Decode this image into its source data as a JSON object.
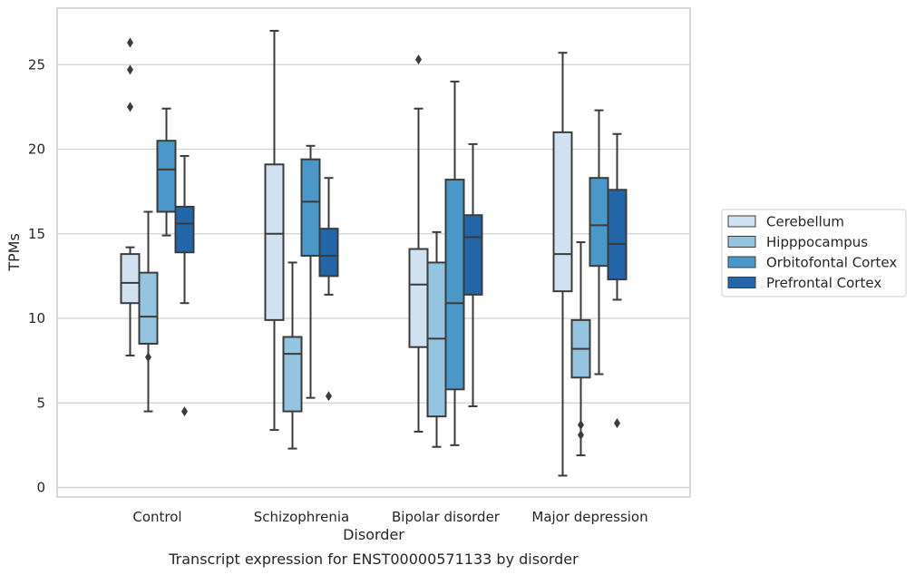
{
  "chart_data": {
    "type": "box",
    "title": "",
    "caption": "Transcript expression for ENST00000571133 by disorder",
    "xlabel": "Disorder",
    "ylabel": "TPMs",
    "ylim": [
      -0.5,
      28
    ],
    "yticks": [
      0,
      5,
      10,
      15,
      20,
      25
    ],
    "grid": "horizontal",
    "legend_position": "right",
    "categories": [
      "Control",
      "Schizophrenia",
      "Bipolar disorder",
      "Major depression"
    ],
    "series": [
      {
        "name": "Cerebellum",
        "color": "#d0e1f2",
        "boxes": [
          {
            "whislo": 7.8,
            "q1": 10.9,
            "med": 12.1,
            "q3": 13.8,
            "whishi": 14.2,
            "fliers": [
              22.5,
              24.7,
              26.3
            ]
          },
          {
            "whislo": 3.4,
            "q1": 9.9,
            "med": 15.0,
            "q3": 19.1,
            "whishi": 27.0,
            "fliers": []
          },
          {
            "whislo": 3.3,
            "q1": 8.3,
            "med": 12.0,
            "q3": 14.1,
            "whishi": 22.4,
            "fliers": [
              25.3
            ]
          },
          {
            "whislo": 0.7,
            "q1": 11.6,
            "med": 13.8,
            "q3": 21.0,
            "whishi": 25.7,
            "fliers": []
          }
        ]
      },
      {
        "name": "Hipppocampus",
        "color": "#94c4df",
        "boxes": [
          {
            "whislo": 4.5,
            "q1": 8.5,
            "med": 10.1,
            "q3": 12.7,
            "whishi": 16.3,
            "fliers": [
              7.7
            ]
          },
          {
            "whislo": 2.3,
            "q1": 4.5,
            "med": 7.9,
            "q3": 8.9,
            "whishi": 13.3,
            "fliers": []
          },
          {
            "whislo": 2.4,
            "q1": 4.2,
            "med": 8.8,
            "q3": 13.3,
            "whishi": 15.1,
            "fliers": []
          },
          {
            "whislo": 1.9,
            "q1": 6.5,
            "med": 8.2,
            "q3": 9.9,
            "whishi": 14.5,
            "fliers": [
              3.1,
              3.7
            ]
          }
        ]
      },
      {
        "name": "Orbitofontal Cortex",
        "color": "#4a98c9",
        "boxes": [
          {
            "whislo": 14.9,
            "q1": 16.3,
            "med": 18.8,
            "q3": 20.5,
            "whishi": 22.4,
            "fliers": []
          },
          {
            "whislo": 5.3,
            "q1": 13.7,
            "med": 16.9,
            "q3": 19.4,
            "whishi": 20.2,
            "fliers": []
          },
          {
            "whislo": 2.5,
            "q1": 5.8,
            "med": 10.9,
            "q3": 18.2,
            "whishi": 24.0,
            "fliers": []
          },
          {
            "whislo": 6.7,
            "q1": 13.1,
            "med": 15.5,
            "q3": 18.3,
            "whishi": 22.3,
            "fliers": []
          }
        ]
      },
      {
        "name": "Prefrontal Cortex",
        "color": "#2366a8",
        "boxes": [
          {
            "whislo": 10.9,
            "q1": 13.9,
            "med": 15.6,
            "q3": 16.6,
            "whishi": 19.6,
            "fliers": [
              4.5
            ]
          },
          {
            "whislo": 11.4,
            "q1": 12.5,
            "med": 13.7,
            "q3": 15.3,
            "whishi": 18.3,
            "fliers": [
              5.4
            ]
          },
          {
            "whislo": 4.8,
            "q1": 11.4,
            "med": 14.8,
            "q3": 16.1,
            "whishi": 20.3,
            "fliers": []
          },
          {
            "whislo": 11.1,
            "q1": 12.3,
            "med": 14.4,
            "q3": 17.6,
            "whishi": 20.9,
            "fliers": [
              3.8
            ]
          }
        ]
      }
    ]
  }
}
